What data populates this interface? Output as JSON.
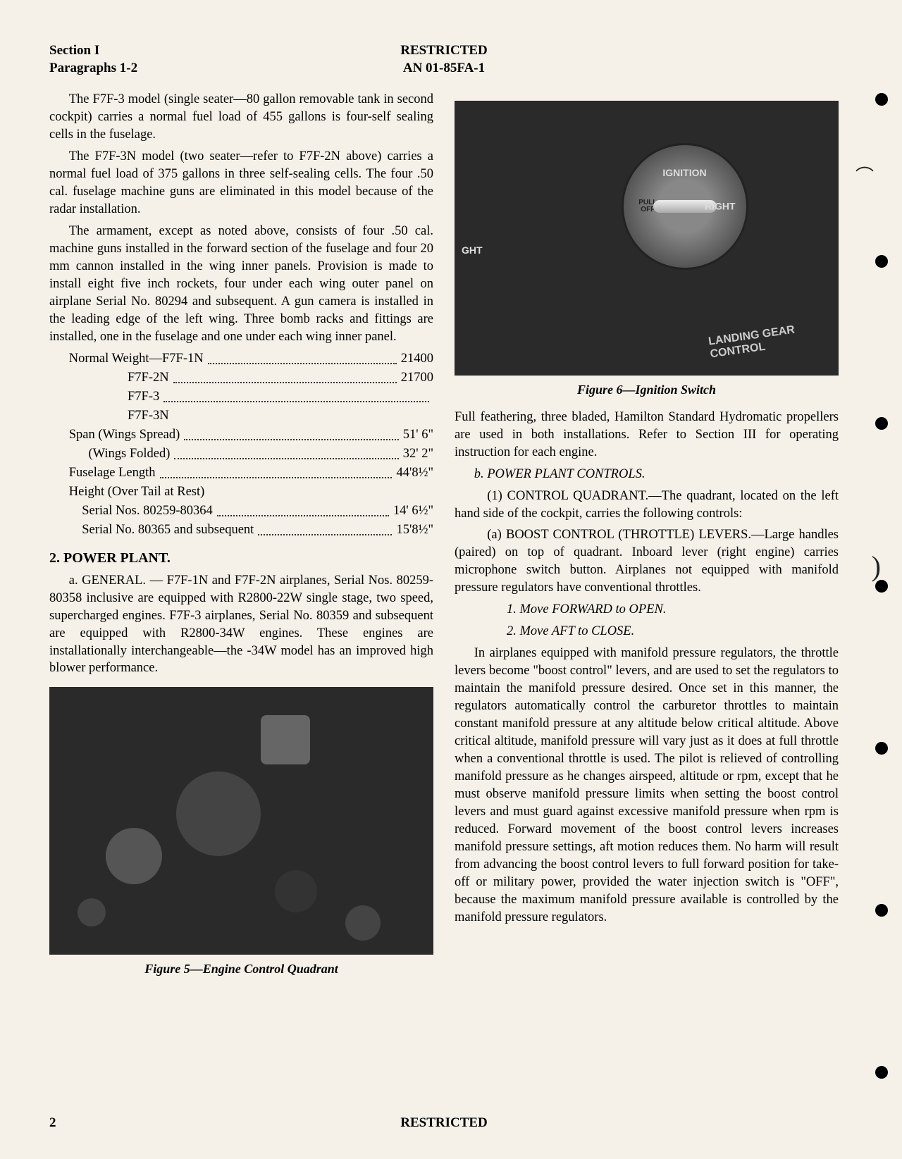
{
  "header": {
    "section": "Section I",
    "paragraphs": "Paragraphs 1-2",
    "classification": "RESTRICTED",
    "docnum": "AN 01-85FA-1"
  },
  "col1": {
    "p1": "The F7F-3 model (single seater—80 gallon removable tank in second cockpit) carries a normal fuel load of 455 gallons is four-self sealing cells in the fuselage.",
    "p2": "The F7F-3N model (two seater—refer to F7F-2N above) carries a normal fuel load of 375 gallons in three self-sealing cells. The four .50 cal. fuselage machine guns are eliminated in this model because of the radar installation.",
    "p3": "The armament, except as noted above, consists of four .50 cal. machine guns installed in the forward section of the fuselage and four 20 mm cannon installed in the wing inner panels. Provision is made to install eight five inch rockets, four under each wing outer panel on airplane Serial No. 80294 and subsequent. A gun camera is installed in the leading edge of the left wing. Three bomb racks and fittings are installed, one in the fuselage and one under each wing inner panel.",
    "specs": {
      "nw_label": "Normal Weight—F7F-1N",
      "nw1": "21400",
      "nw2_label": "F7F-2N",
      "nw2": "21700",
      "nw3_label": "F7F-3",
      "nw4_label": "F7F-3N",
      "span_label": "Span (Wings Spread)",
      "span": "51' 6\"",
      "fold_label": "(Wings Folded)",
      "fold": "32' 2\"",
      "fuse_label": "Fuselage Length",
      "fuse": "44'8½\"",
      "height_label": "Height (Over Tail at Rest)",
      "ser1_label": "Serial Nos. 80259-80364",
      "ser1": "14' 6½\"",
      "ser2_label": "Serial No. 80365 and subsequent",
      "ser2": "15'8½\""
    },
    "section2": "2. POWER PLANT.",
    "p4": "a. GENERAL. — F7F-1N and F7F-2N airplanes, Serial Nos. 80259-80358 inclusive are equipped with R2800-22W single stage, two speed, supercharged engines. F7F-3 airplanes, Serial No. 80359 and subsequent are equipped with R2800-34W engines. These engines are installationally interchangeable—the -34W model has an improved high blower performance.",
    "fig5_caption": "Figure 5—Engine Control Quadrant"
  },
  "col2": {
    "fig6_caption": "Figure 6—Ignition Switch",
    "p1": "Full feathering, three bladed, Hamilton Standard Hydromatic propellers are used in both installations. Refer to Section III for operating instruction for each engine.",
    "p2_head": "b. POWER PLANT CONTROLS.",
    "p3": "(1) CONTROL QUADRANT.—The quadrant, located on the left hand side of the cockpit, carries the following controls:",
    "p4": "(a) BOOST CONTROL (THROTTLE) LEVERS.—Large handles (paired) on top of quadrant. Inboard lever (right engine) carries microphone switch button. Airplanes not equipped with manifold pressure regulators have conventional throttles.",
    "li1": "1. Move FORWARD to OPEN.",
    "li2": "2. Move AFT to CLOSE.",
    "p5": "In airplanes equipped with manifold pressure regulators, the throttle levers become \"boost control\" levers, and are used to set the regulators to maintain the manifold pressure desired. Once set in this manner, the regulators automatically control the carburetor throttles to maintain constant manifold pressure at any altitude below critical altitude. Above critical altitude, manifold pressure will vary just as it does at full throttle when a conventional throttle is used. The pilot is relieved of controlling manifold pressure as he changes airspeed, altitude or rpm, except that he must observe manifold pressure limits when setting the boost control levers and must guard against excessive manifold pressure when rpm is reduced. Forward movement of the boost control levers increases manifold pressure settings, aft motion reduces them. No harm will result from advancing the boost control levers to full forward position for take-off or military power, provided the water injection switch is \"OFF\", because the maximum manifold pressure available is controlled by the manifold pressure regulators."
  },
  "footer": {
    "page": "2",
    "classification": "RESTRICTED"
  },
  "figure6": {
    "ignition": "IGNITION",
    "pull": "PULL",
    "off": "OFF",
    "right": "RIGHT",
    "left_partial": "GHT",
    "landing": "LANDING GEAR",
    "control": "CONTROL"
  },
  "holes_top_pct": [
    8,
    22,
    36,
    50,
    64,
    78,
    92
  ]
}
